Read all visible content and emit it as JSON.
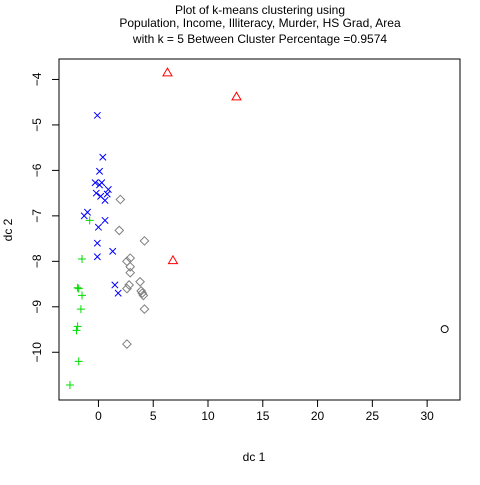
{
  "chart_data": {
    "type": "scatter",
    "title_lines": [
      "Plot of k-means clustering using",
      "Population, Income, Illiteracy, Murder, HS Grad, Area",
      "with  k = 5 Between Cluster Percentage =0.9574"
    ],
    "xlabel": "dc 1",
    "ylabel": "dc 2",
    "xlim": [
      -3.6,
      33.0
    ],
    "ylim": [
      -11.05,
      -3.55
    ],
    "x_ticks": [
      0,
      5,
      10,
      15,
      20,
      25,
      30
    ],
    "y_ticks": [
      -4,
      -5,
      -6,
      -7,
      -8,
      -9,
      -10
    ],
    "grid": false,
    "legend": "none",
    "series": [
      {
        "marker": "circle",
        "color": "#000000",
        "points": [
          [
            31.6,
            -9.49
          ]
        ]
      },
      {
        "marker": "triangle",
        "color": "#ff0000",
        "points": [
          [
            6.3,
            -3.85
          ],
          [
            12.6,
            -4.38
          ],
          [
            6.8,
            -7.98
          ]
        ]
      },
      {
        "marker": "plus",
        "color": "#00dd00",
        "points": [
          [
            -0.8,
            -7.1
          ],
          [
            -1.5,
            -7.95
          ],
          [
            -1.9,
            -8.58
          ],
          [
            -1.8,
            -8.6
          ],
          [
            -1.5,
            -8.75
          ],
          [
            -1.6,
            -9.05
          ],
          [
            -1.9,
            -9.43
          ],
          [
            -2.0,
            -9.52
          ],
          [
            -1.8,
            -10.2
          ],
          [
            -2.6,
            -10.72
          ]
        ]
      },
      {
        "marker": "x",
        "color": "#0000ff",
        "points": [
          [
            -0.1,
            -4.79
          ],
          [
            0.4,
            -5.71
          ],
          [
            0.1,
            -6.02
          ],
          [
            -0.3,
            -6.27
          ],
          [
            0.3,
            -6.27
          ],
          [
            0.1,
            -6.32
          ],
          [
            0.9,
            -6.42
          ],
          [
            -0.2,
            -6.5
          ],
          [
            0.8,
            -6.52
          ],
          [
            0.2,
            -6.57
          ],
          [
            0.6,
            -6.66
          ],
          [
            -1.0,
            -6.92
          ],
          [
            -1.3,
            -7.0
          ],
          [
            0.6,
            -7.1
          ],
          [
            0.0,
            -7.25
          ],
          [
            -0.1,
            -7.6
          ],
          [
            1.3,
            -7.78
          ],
          [
            -0.1,
            -7.9
          ],
          [
            1.5,
            -8.52
          ],
          [
            1.8,
            -8.7
          ]
        ]
      },
      {
        "marker": "diamond",
        "color": "#808080",
        "points": [
          [
            2.0,
            -6.64
          ],
          [
            1.9,
            -7.32
          ],
          [
            4.2,
            -7.55
          ],
          [
            2.9,
            -7.93
          ],
          [
            2.6,
            -8.0
          ],
          [
            2.9,
            -8.12
          ],
          [
            2.9,
            -8.25
          ],
          [
            3.8,
            -8.45
          ],
          [
            2.8,
            -8.52
          ],
          [
            2.6,
            -8.6
          ],
          [
            3.9,
            -8.65
          ],
          [
            4.0,
            -8.7
          ],
          [
            4.1,
            -8.75
          ],
          [
            4.2,
            -9.05
          ],
          [
            2.6,
            -9.82
          ]
        ]
      }
    ]
  }
}
